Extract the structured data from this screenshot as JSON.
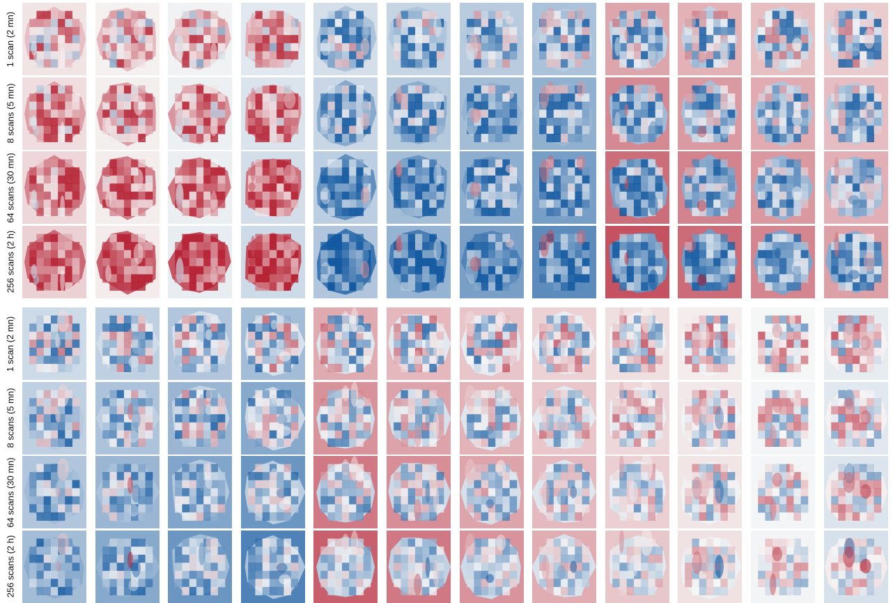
{
  "panels": [
    {
      "rows": [
        {
          "label": "1 scan (2 mn)"
        },
        {
          "label": "8 scans (5 mn)"
        },
        {
          "label": "64 scans (30 mn)"
        },
        {
          "label": "256 scans (2 h)"
        }
      ]
    },
    {
      "rows": [
        {
          "label": "1 scan (2 mn)"
        },
        {
          "label": "8 scans (5 mn)"
        },
        {
          "label": "64 scans (30 mn)"
        },
        {
          "label": "256 scans (2 h)"
        }
      ]
    }
  ],
  "columns_per_row": 12,
  "colormap": {
    "low": "#08519c",
    "mid": "#f7f7f7",
    "high": "#b2182b"
  }
}
